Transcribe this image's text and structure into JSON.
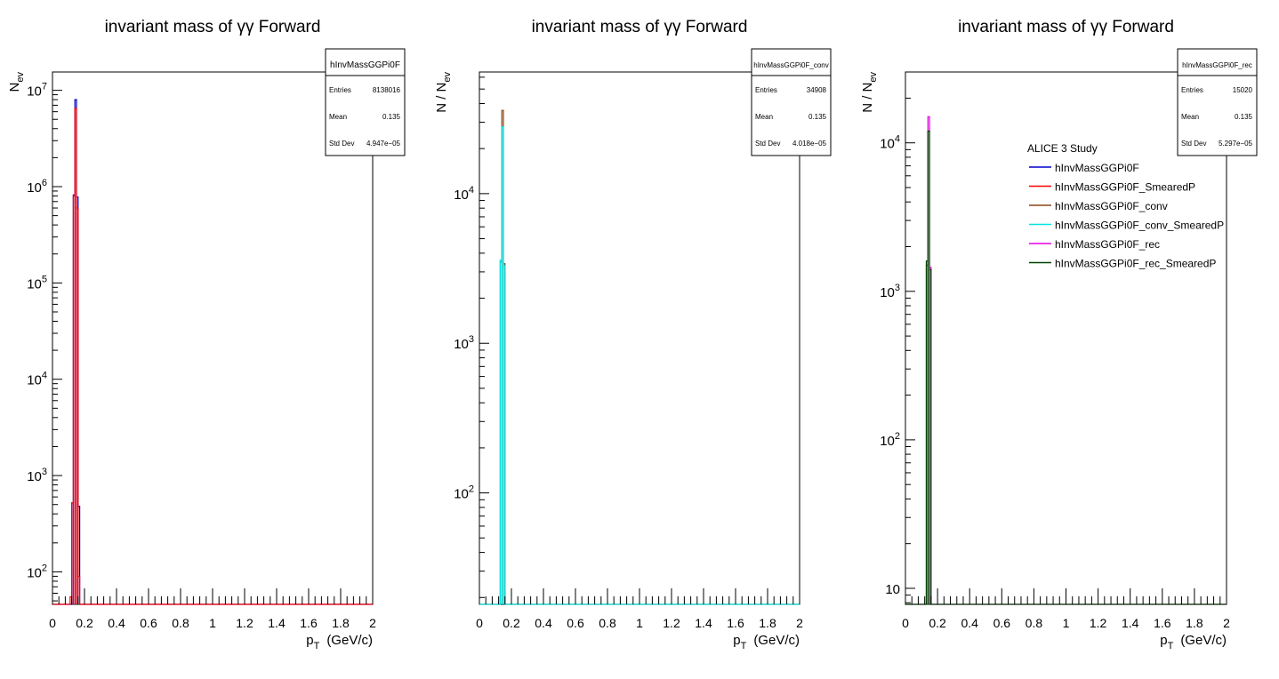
{
  "chart_data": [
    {
      "type": "histogram",
      "title": "invariant mass of γγ Forward",
      "xlabel_main": "p",
      "xlabel_sub": "T",
      "xlabel_unit": "(GeV/c)",
      "ylabel_main": "N",
      "ylabel_sub": "ev",
      "yscale": "log",
      "xlim": [
        0,
        2
      ],
      "ylim": [
        46,
        15500000
      ],
      "x_ticks": [
        "0",
        "0.2",
        "0.4",
        "0.6",
        "0.8",
        "1",
        "1.2",
        "1.4",
        "1.6",
        "1.8",
        "2"
      ],
      "y_ticks": [
        {
          "base": "10",
          "exp": "2",
          "value": 100
        },
        {
          "base": "10",
          "exp": "3",
          "value": 1000
        },
        {
          "base": "10",
          "exp": "4",
          "value": 10000
        },
        {
          "base": "10",
          "exp": "5",
          "value": 100000
        },
        {
          "base": "10",
          "exp": "6",
          "value": 1000000
        },
        {
          "base": "10",
          "exp": "7",
          "value": 10000000
        }
      ],
      "stats": {
        "name": "hInvMassGGPi0F",
        "rows": [
          {
            "label": "Entries",
            "value": "8138016"
          },
          {
            "label": "Mean",
            "value": "0.135"
          },
          {
            "label": "Std Dev",
            "value": "4.947e−05"
          }
        ]
      },
      "series": [
        {
          "name": "hInvMassGGPi0F",
          "color": "#0000cc",
          "bins": [
            [
              0.12,
              0.13,
              520
            ],
            [
              0.13,
              0.14,
              820000
            ],
            [
              0.14,
              0.15,
              8000000
            ],
            [
              0.15,
              0.16,
              780000
            ],
            [
              0.16,
              0.17,
              480
            ]
          ]
        },
        {
          "name": "hInvMassGGPi0F_SmearedP",
          "color": "#ff0000",
          "bins": [
            [
              0.11,
              0.12,
              55
            ],
            [
              0.12,
              0.13,
              520
            ],
            [
              0.13,
              0.14,
              800000
            ],
            [
              0.14,
              0.15,
              6500000
            ],
            [
              0.15,
              0.16,
              600000
            ],
            [
              0.16,
              0.17,
              90
            ]
          ]
        }
      ]
    },
    {
      "type": "histogram",
      "title": "invariant mass of γγ Forward",
      "xlabel_main": "p",
      "xlabel_sub": "T",
      "xlabel_unit": "(GeV/c)",
      "ylabel_main": "N / N",
      "ylabel_sub": "ev",
      "yscale": "log",
      "xlim": [
        0,
        2
      ],
      "ylim": [
        18,
        65000
      ],
      "x_ticks": [
        "0",
        "0.2",
        "0.4",
        "0.6",
        "0.8",
        "1",
        "1.2",
        "1.4",
        "1.6",
        "1.8",
        "2"
      ],
      "y_ticks": [
        {
          "base": "10",
          "exp": "2",
          "value": 100
        },
        {
          "base": "10",
          "exp": "3",
          "value": 1000
        },
        {
          "base": "10",
          "exp": "4",
          "value": 10000
        }
      ],
      "stats": {
        "name": "hInvMassGGPi0F_conv",
        "rows": [
          {
            "label": "Entries",
            "value": "34908"
          },
          {
            "label": "Mean",
            "value": "0.135"
          },
          {
            "label": "Std Dev",
            "value": "4.018e−05"
          }
        ]
      },
      "series": [
        {
          "name": "hInvMassGGPi0F_conv",
          "color": "#8b4513",
          "bins": [
            [
              0.13,
              0.14,
              3500
            ],
            [
              0.14,
              0.15,
              36000
            ],
            [
              0.15,
              0.16,
              3400
            ]
          ]
        },
        {
          "name": "hInvMassGGPi0F_conv_SmearedP",
          "color": "#00e5e5",
          "bins": [
            [
              0.13,
              0.14,
              3600
            ],
            [
              0.14,
              0.15,
              28000
            ],
            [
              0.15,
              0.16,
              3300
            ]
          ]
        }
      ]
    },
    {
      "type": "histogram",
      "title": "invariant mass of γγ Forward",
      "xlabel_main": "p",
      "xlabel_sub": "T",
      "xlabel_unit": "(GeV/c)",
      "ylabel_main": "N / N",
      "ylabel_sub": "ev",
      "yscale": "log",
      "xlim": [
        0,
        2
      ],
      "ylim": [
        7.8,
        30000
      ],
      "x_ticks": [
        "0",
        "0.2",
        "0.4",
        "0.6",
        "0.8",
        "1",
        "1.2",
        "1.4",
        "1.6",
        "1.8",
        "2"
      ],
      "y_ticks": [
        {
          "base": "10",
          "exp": "",
          "value": 10
        },
        {
          "base": "10",
          "exp": "2",
          "value": 100
        },
        {
          "base": "10",
          "exp": "3",
          "value": 1000
        },
        {
          "base": "10",
          "exp": "4",
          "value": 10000
        }
      ],
      "stats": {
        "name": "hInvMassGGPi0F_rec",
        "rows": [
          {
            "label": "Entries",
            "value": "15020"
          },
          {
            "label": "Mean",
            "value": "0.135"
          },
          {
            "label": "Std Dev",
            "value": "5.297e−05"
          }
        ]
      },
      "series": [
        {
          "name": "hInvMassGGPi0F_rec",
          "color": "#e600e6",
          "bins": [
            [
              0.13,
              0.14,
              1500
            ],
            [
              0.14,
              0.15,
              15000
            ],
            [
              0.15,
              0.16,
              1450
            ]
          ]
        },
        {
          "name": "hInvMassGGPi0F_rec_SmearedP",
          "color": "#004400",
          "bins": [
            [
              0.13,
              0.14,
              1600
            ],
            [
              0.14,
              0.15,
              12000
            ],
            [
              0.15,
              0.16,
              1400
            ]
          ]
        }
      ],
      "legend": {
        "title": "ALICE 3 Study",
        "entries": [
          {
            "label": "hInvMassGGPi0F",
            "color": "#0000cc"
          },
          {
            "label": "hInvMassGGPi0F_SmearedP",
            "color": "#ff0000"
          },
          {
            "label": "hInvMassGGPi0F_conv",
            "color": "#8b4513"
          },
          {
            "label": "hInvMassGGPi0F_conv_SmearedP",
            "color": "#00e5e5"
          },
          {
            "label": "hInvMassGGPi0F_rec",
            "color": "#e600e6"
          },
          {
            "label": "hInvMassGGPi0F_rec_SmearedP",
            "color": "#004400"
          }
        ]
      }
    }
  ]
}
